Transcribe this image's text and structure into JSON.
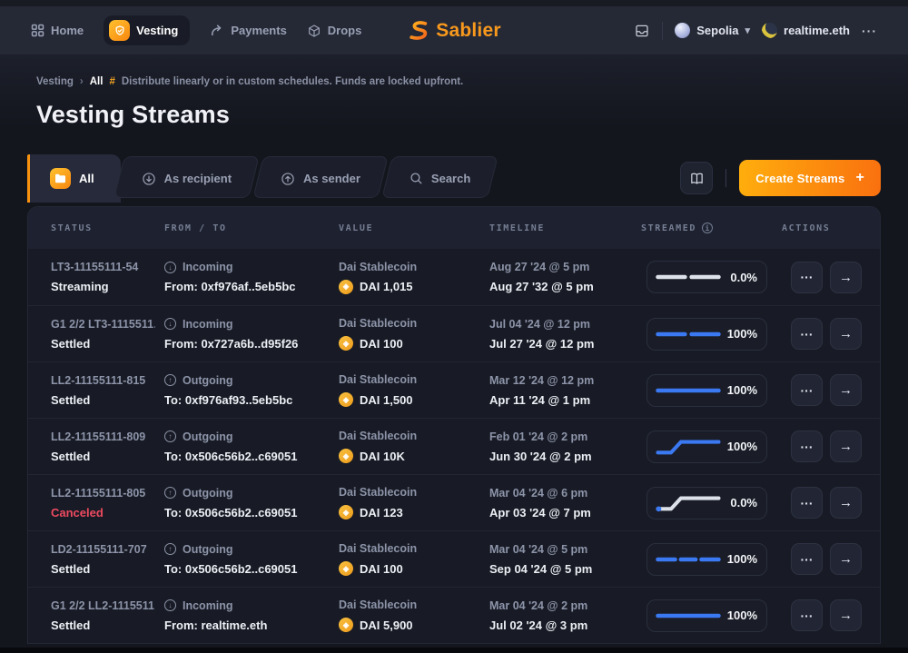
{
  "nav": {
    "items": [
      {
        "label": "Home"
      },
      {
        "label": "Vesting"
      },
      {
        "label": "Payments"
      },
      {
        "label": "Drops"
      }
    ],
    "brand": "Sablier",
    "network": "Sepolia",
    "account": "realtime.eth"
  },
  "breadcrumb": {
    "section": "Vesting",
    "separator": "›",
    "current": "All",
    "hash": "#",
    "description": "Distribute linearly or in custom schedules. Funds are locked upfront."
  },
  "page": {
    "title": "Vesting Streams"
  },
  "tabs": [
    {
      "label": "All",
      "active": true
    },
    {
      "label": "As recipient"
    },
    {
      "label": "As sender"
    },
    {
      "label": "Search"
    }
  ],
  "toolbar": {
    "create_label": "Create Streams"
  },
  "table": {
    "headers": [
      "STATUS",
      "FROM / TO",
      "VALUE",
      "TIMELINE",
      "STREAMED",
      "ACTIONS"
    ],
    "rows": [
      {
        "id": "LT3-11155111-54",
        "status": "Streaming",
        "canceled": false,
        "direction": "Incoming",
        "counterparty": "From: 0xf976af..5eb5bc",
        "token": "Dai Stablecoin",
        "amount": "DAI 1,015",
        "start": "Aug 27 '24 @ 5 pm",
        "end": "Aug 27 '32 @ 5 pm",
        "percent": "0.0%",
        "shape": "dash2",
        "shape_color": "gray",
        "start_dot": false
      },
      {
        "id": "G1 2/2 LT3-1115511…",
        "status": "Settled",
        "canceled": false,
        "direction": "Incoming",
        "counterparty": "From: 0x727a6b..d95f26",
        "token": "Dai Stablecoin",
        "amount": "DAI 100",
        "start": "Jul 04 '24 @ 12 pm",
        "end": "Jul 27 '24 @ 12 pm",
        "percent": "100%",
        "shape": "dash2",
        "shape_color": "blue",
        "start_dot": false
      },
      {
        "id": "LL2-11155111-815",
        "status": "Settled",
        "canceled": false,
        "direction": "Outgoing",
        "counterparty": "To: 0xf976af93..5eb5bc",
        "token": "Dai Stablecoin",
        "amount": "DAI 1,500",
        "start": "Mar 12 '24 @ 12 pm",
        "end": "Apr 11 '24 @ 1 pm",
        "percent": "100%",
        "shape": "dash1",
        "shape_color": "blue",
        "start_dot": false
      },
      {
        "id": "LL2-11155111-809",
        "status": "Settled",
        "canceled": false,
        "direction": "Outgoing",
        "counterparty": "To: 0x506c56b2..c69051",
        "token": "Dai Stablecoin",
        "amount": "DAI 10K",
        "start": "Feb 01 '24 @ 2 pm",
        "end": "Jun 30 '24 @ 2 pm",
        "percent": "100%",
        "shape": "cliff",
        "shape_color": "blue",
        "start_dot": false
      },
      {
        "id": "LL2-11155111-805",
        "status": "Canceled",
        "canceled": true,
        "direction": "Outgoing",
        "counterparty": "To: 0x506c56b2..c69051",
        "token": "Dai Stablecoin",
        "amount": "DAI 123",
        "start": "Mar 04 '24 @ 6 pm",
        "end": "Apr 03 '24 @ 7 pm",
        "percent": "0.0%",
        "shape": "cliff",
        "shape_color": "gray",
        "start_dot": true
      },
      {
        "id": "LD2-11155111-707",
        "status": "Settled",
        "canceled": false,
        "direction": "Outgoing",
        "counterparty": "To: 0x506c56b2..c69051",
        "token": "Dai Stablecoin",
        "amount": "DAI 100",
        "start": "Mar 04 '24 @ 5 pm",
        "end": "Sep 04 '24 @ 5 pm",
        "percent": "100%",
        "shape": "dash3",
        "shape_color": "blue",
        "start_dot": false
      },
      {
        "id": "G1 2/2 LL2-1115511…",
        "status": "Settled",
        "canceled": false,
        "direction": "Incoming",
        "counterparty": "From: realtime.eth",
        "token": "Dai Stablecoin",
        "amount": "DAI 5,900",
        "start": "Mar 04 '24 @ 2 pm",
        "end": "Jul 02 '24 @ 3 pm",
        "percent": "100%",
        "shape": "dash1",
        "shape_color": "blue",
        "start_dot": false
      }
    ]
  },
  "icons": {
    "plus": "+",
    "more": "···",
    "arrow_right": "→",
    "chevron_down": "▾",
    "incoming_arrow": "↓",
    "outgoing_arrow": "↑",
    "coin_glyph": "◈",
    "info_letter": "i"
  },
  "colors": {
    "accent_orange": "#f9930f",
    "progress_blue": "#3b79f3",
    "progress_gray": "#dde1ea",
    "canceled_red": "#ee4a60"
  }
}
